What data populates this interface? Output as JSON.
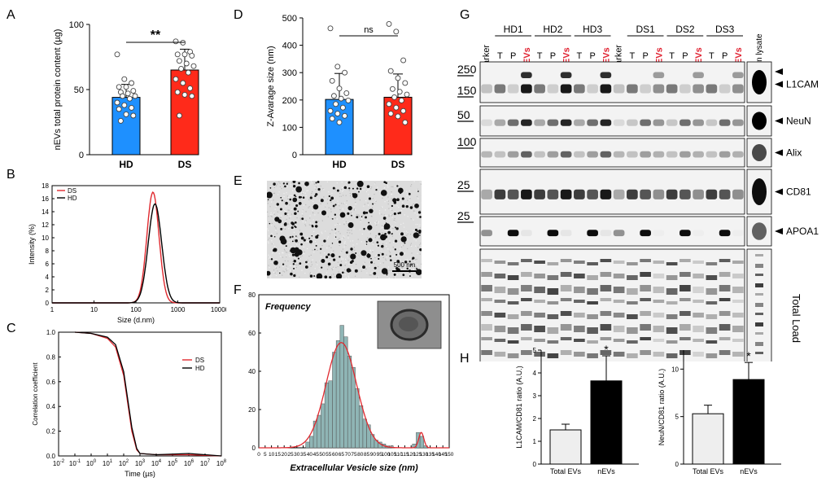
{
  "panel_labels": {
    "A": "A",
    "B": "B",
    "C": "C",
    "D": "D",
    "E": "E",
    "F": "F",
    "G": "G",
    "H": "H"
  },
  "colors": {
    "hd": "#1e90ff",
    "ds": "#ff2a1a",
    "bar_gray": "#eeeeee",
    "bar_black": "#000000",
    "hist": "#8fb5b5",
    "fit": "#e0292f",
    "nev_red": "#e0202f",
    "blot_bg": "#f3f3f3"
  },
  "chart_data": [
    {
      "id": "A",
      "type": "bar",
      "ylabel": "nEVs total protein content (µg)",
      "categories": [
        "HD",
        "DS"
      ],
      "values": [
        44,
        65
      ],
      "errors": [
        10,
        16
      ],
      "ylim": [
        0,
        100
      ],
      "yticks": [
        "0",
        "50",
        "100"
      ],
      "significance": "**",
      "points": [
        [
          77,
          58,
          55,
          52,
          52,
          49,
          48,
          47,
          45,
          45,
          43,
          40,
          38,
          36,
          35,
          31,
          30,
          26
        ],
        [
          87,
          86,
          79,
          77,
          77,
          76,
          72,
          70,
          68,
          66,
          63,
          58,
          55,
          51,
          48,
          46,
          45,
          30
        ]
      ]
    },
    {
      "id": "B",
      "type": "line",
      "xlabel": "Size (d.nm)",
      "ylabel": "Intensity (%)",
      "xscale": "log",
      "xlim": [
        1,
        10000
      ],
      "xticks": [
        "1",
        "10",
        "100",
        "1000",
        "10000"
      ],
      "ylim": [
        0,
        18
      ],
      "yticks": [
        "0",
        "2",
        "4",
        "6",
        "8",
        "10",
        "12",
        "14",
        "16",
        "18"
      ],
      "legend": [
        "DS",
        "HD"
      ],
      "series": [
        {
          "name": "DS",
          "peak_x": 255,
          "peak_y": 17,
          "width": 0.145,
          "color": "#e0292f"
        },
        {
          "name": "HD",
          "peak_x": 285,
          "peak_y": 15.2,
          "width": 0.16,
          "color": "#000000"
        }
      ]
    },
    {
      "id": "C",
      "type": "line",
      "xlabel": "Time (µs)",
      "ylabel": "Correlation coefficient",
      "xscale": "log",
      "xticks": [
        "10-2",
        "10-1",
        "100",
        "101",
        "102",
        "103",
        "104",
        "105",
        "106",
        "107",
        "108"
      ],
      "ylim": [
        0,
        1
      ],
      "yticks": [
        "0.0",
        "0.2",
        "0.4",
        "0.6",
        "0.8",
        "1.0"
      ],
      "legend": [
        "DS",
        "HD"
      ],
      "series": [
        {
          "name": "DS",
          "color": "#e0292f",
          "points": [
            [
              -1,
              1.0
            ],
            [
              0,
              0.99
            ],
            [
              1,
              0.95
            ],
            [
              1.5,
              0.88
            ],
            [
              2,
              0.65
            ],
            [
              2.5,
              0.2
            ],
            [
              2.8,
              0.05
            ],
            [
              3,
              0.02
            ],
            [
              4,
              0.01
            ],
            [
              6,
              0.01
            ],
            [
              8,
              0.0
            ]
          ]
        },
        {
          "name": "HD",
          "color": "#000000",
          "points": [
            [
              -1,
              1.0
            ],
            [
              0,
              0.99
            ],
            [
              1,
              0.96
            ],
            [
              1.5,
              0.9
            ],
            [
              2,
              0.68
            ],
            [
              2.5,
              0.23
            ],
            [
              2.8,
              0.06
            ],
            [
              3,
              0.02
            ],
            [
              4,
              0.01
            ],
            [
              6,
              0.02
            ],
            [
              8,
              0.0
            ]
          ]
        }
      ]
    },
    {
      "id": "D",
      "type": "bar",
      "ylabel": "Z-Avarage size (nm)",
      "categories": [
        "HD",
        "DS"
      ],
      "values": [
        202,
        210
      ],
      "errors": [
        95,
        85
      ],
      "ylim": [
        0,
        500
      ],
      "yticks": [
        "0",
        "100",
        "200",
        "300",
        "400",
        "500"
      ],
      "significance": "ns",
      "points": [
        [
          462,
          322,
          300,
          270,
          242,
          225,
          215,
          205,
          198,
          185,
          172,
          160,
          150,
          142,
          132,
          118
        ],
        [
          478,
          450,
          345,
          306,
          280,
          262,
          240,
          230,
          220,
          210,
          198,
          185,
          172,
          160,
          150,
          140,
          118
        ]
      ]
    },
    {
      "id": "F",
      "type": "bar",
      "title": "Frequency",
      "xlabel": "Extracellular Vesicle size (nm)",
      "xticks": [
        "0",
        "5",
        "10",
        "15",
        "20",
        "25",
        "30",
        "35",
        "40",
        "45",
        "50",
        "55",
        "60",
        "65",
        "70",
        "75",
        "80",
        "85",
        "90",
        "95",
        "100",
        "105",
        "110",
        "115",
        "120",
        "125",
        "130",
        "135",
        "140",
        "145",
        "150"
      ],
      "ylim": [
        0,
        80
      ],
      "yticks": [
        "0",
        "20",
        "40",
        "60",
        "80"
      ],
      "bin_starts": [
        37,
        40,
        43,
        46,
        49,
        52,
        55,
        58,
        61,
        64,
        67,
        70,
        73,
        76,
        79,
        82,
        85,
        88,
        91,
        94,
        97,
        100,
        103,
        106,
        109,
        112,
        115,
        118,
        121,
        124,
        127,
        130
      ],
      "bin_width": 3,
      "values": [
        3,
        6,
        14,
        17,
        23,
        34,
        35,
        50,
        56,
        64,
        58,
        48,
        42,
        31,
        22,
        15,
        12,
        7,
        4,
        3,
        2,
        1,
        1,
        0,
        0,
        0,
        0,
        0,
        2,
        8,
        6,
        1
      ],
      "fit": {
        "mu": 65,
        "sigma": 12,
        "amp": 55,
        "mu2": 128,
        "sigma2": 2,
        "amp2": 8
      }
    },
    {
      "id": "H1",
      "type": "bar",
      "ylabel": "L1CAM/CD81 ratio (A.U.)",
      "categories": [
        "Total EVs",
        "nEVs"
      ],
      "values": [
        1.5,
        3.65
      ],
      "errors": [
        0.25,
        1.1
      ],
      "ylim": [
        0,
        5
      ],
      "yticks": [
        "0",
        "1",
        "2",
        "3",
        "4",
        "5"
      ],
      "significance": [
        "",
        "*"
      ]
    },
    {
      "id": "H2",
      "type": "bar",
      "ylabel": "NeuN/CD81 ratio (A.U.)",
      "categories": [
        "Total EVs",
        "nEVs"
      ],
      "values": [
        5.3,
        8.9
      ],
      "errors": [
        0.9,
        1.8
      ],
      "ylim": [
        0,
        12
      ],
      "yticks": [
        "0",
        "5",
        "10"
      ],
      "significance": [
        "",
        "*"
      ]
    }
  ],
  "panel_e": {
    "scale_bar": "500 nm"
  },
  "blot": {
    "groups": [
      "HD1",
      "HD2",
      "HD3",
      "DS1",
      "DS2",
      "DS3"
    ],
    "lane_marker": "Marker",
    "lane_t": "T",
    "lane_p": "P",
    "lane_nevs": "nEVs",
    "lysate_label": "H brain lysate",
    "mw": [
      "250",
      "150",
      "50",
      "100",
      "25",
      "25"
    ],
    "rows": [
      "L1CAM",
      "NeuN",
      "Alix",
      "CD81",
      "APOA1",
      "Total Load"
    ]
  }
}
